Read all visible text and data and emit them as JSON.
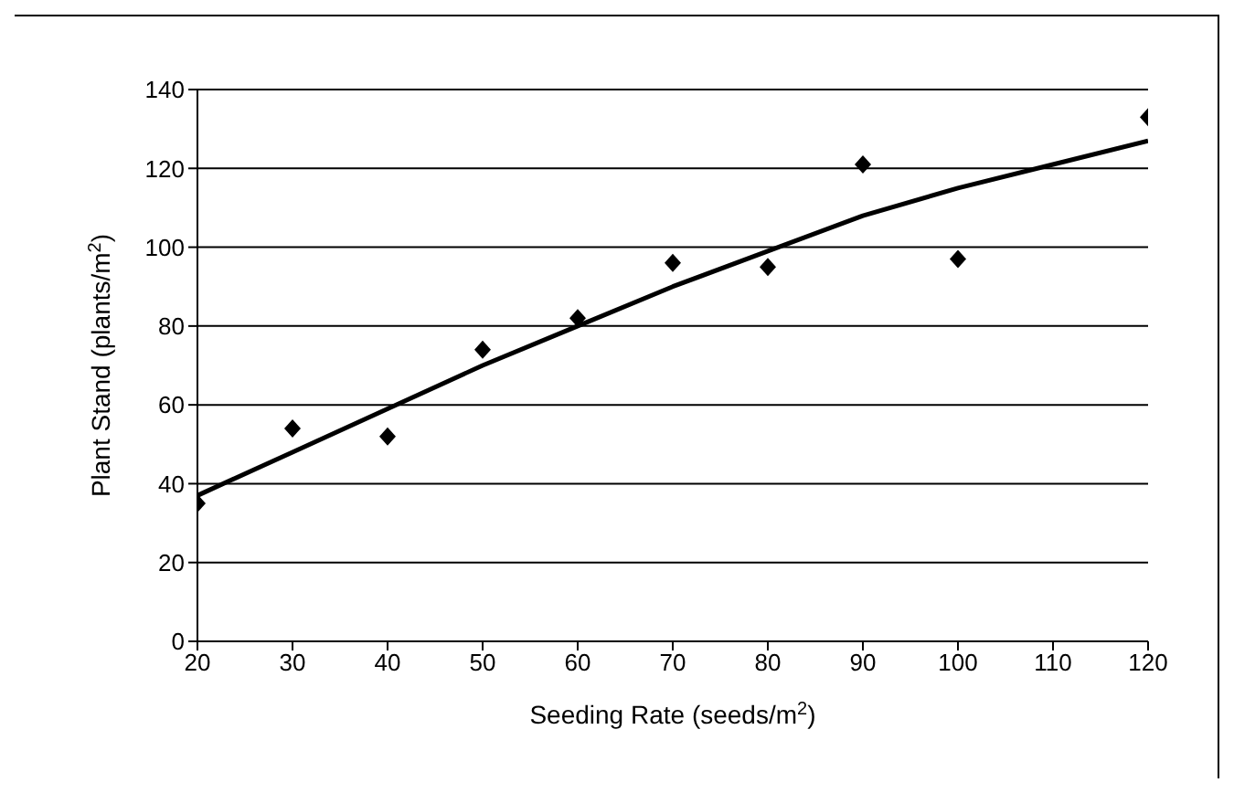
{
  "chart_data": {
    "type": "scatter",
    "xlabel": "Seeding Rate (seeds/m$^{2}$)",
    "ylabel": "Plant Stand (plants/m$^{2}$)",
    "xlim": [
      20,
      120
    ],
    "xticks": [
      20,
      30,
      40,
      50,
      60,
      70,
      80,
      90,
      100,
      110,
      120
    ],
    "ylim": [
      0,
      140
    ],
    "yticks": [
      0,
      20,
      40,
      60,
      80,
      100,
      120,
      140
    ],
    "grid": "y",
    "legend": false,
    "series": [
      {
        "type": "scatter",
        "color": "#000000",
        "marker": "diamond",
        "x": [
          20,
          30,
          40,
          50,
          60,
          70,
          80,
          90,
          100,
          120
        ],
        "values": [
          35,
          54,
          52,
          74,
          82,
          96,
          95,
          121,
          97,
          133
        ]
      },
      {
        "type": "line",
        "color": "#000000",
        "marker": "none",
        "line_style": "solid",
        "x": [
          20,
          30,
          40,
          50,
          60,
          70,
          80,
          90,
          100,
          110,
          120
        ],
        "values": [
          37,
          48,
          59,
          70,
          80,
          90,
          99,
          108,
          115,
          121,
          127
        ]
      }
    ]
  }
}
